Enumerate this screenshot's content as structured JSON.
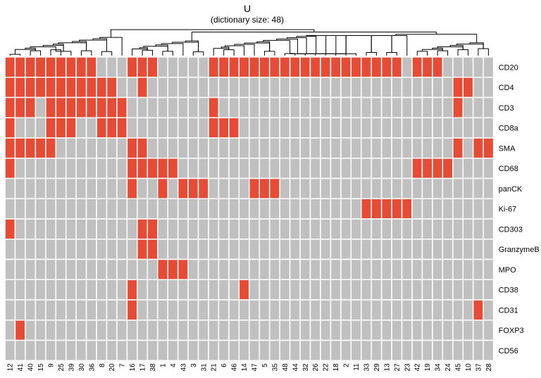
{
  "chart_data": {
    "type": "heatmap",
    "title": "U",
    "subtitle": "(dictionary size: 48)",
    "rows": [
      "CD20",
      "CD4",
      "CD3",
      "CD8a",
      "SMA",
      "CD68",
      "panCK",
      "Ki-67",
      "CD303",
      "GranzymeB",
      "MPO",
      "CD38",
      "CD31",
      "FOXP3",
      "CD56"
    ],
    "columns": [
      "12",
      "41",
      "40",
      "15",
      "9",
      "25",
      "39",
      "30",
      "36",
      "8",
      "20",
      "7",
      "16",
      "17",
      "38",
      "1",
      "4",
      "43",
      "3",
      "31",
      "21",
      "6",
      "46",
      "14",
      "47",
      "5",
      "35",
      "48",
      "44",
      "32",
      "26",
      "22",
      "18",
      "2",
      "11",
      "33",
      "29",
      "13",
      "27",
      "23",
      "42",
      "19",
      "34",
      "24",
      "45",
      "10",
      "37",
      "28"
    ],
    "values": [
      [
        1,
        1,
        1,
        1,
        1,
        1,
        1,
        1,
        1,
        0,
        0,
        0,
        1,
        1,
        1,
        0,
        0,
        0,
        0,
        0,
        1,
        1,
        1,
        1,
        1,
        1,
        1,
        1,
        1,
        1,
        1,
        1,
        1,
        1,
        1,
        1,
        1,
        1,
        1,
        0,
        1,
        1,
        1,
        0,
        0,
        0,
        0,
        0
      ],
      [
        1,
        1,
        1,
        1,
        1,
        1,
        1,
        1,
        1,
        1,
        1,
        0,
        0,
        1,
        0,
        0,
        0,
        0,
        0,
        0,
        0,
        0,
        0,
        0,
        0,
        0,
        0,
        0,
        0,
        0,
        0,
        0,
        0,
        0,
        0,
        0,
        0,
        0,
        0,
        0,
        0,
        0,
        0,
        0,
        1,
        1,
        0,
        0
      ],
      [
        1,
        1,
        1,
        0,
        1,
        1,
        1,
        1,
        1,
        1,
        1,
        1,
        0,
        0,
        0,
        0,
        0,
        0,
        0,
        0,
        1,
        0,
        0,
        0,
        0,
        0,
        0,
        0,
        0,
        0,
        0,
        0,
        0,
        0,
        0,
        0,
        0,
        0,
        0,
        0,
        0,
        0,
        0,
        0,
        1,
        0,
        0,
        0
      ],
      [
        1,
        0,
        0,
        0,
        1,
        1,
        1,
        0,
        0,
        1,
        1,
        1,
        0,
        0,
        0,
        0,
        0,
        0,
        0,
        0,
        1,
        1,
        1,
        0,
        0,
        0,
        0,
        0,
        0,
        0,
        0,
        0,
        0,
        0,
        0,
        0,
        0,
        0,
        0,
        0,
        0,
        0,
        0,
        0,
        0,
        0,
        0,
        0
      ],
      [
        1,
        1,
        1,
        1,
        1,
        0,
        0,
        0,
        0,
        0,
        0,
        0,
        1,
        1,
        0,
        0,
        0,
        0,
        0,
        0,
        0,
        0,
        0,
        0,
        0,
        0,
        0,
        0,
        0,
        0,
        0,
        0,
        0,
        0,
        0,
        0,
        0,
        0,
        0,
        0,
        0,
        0,
        0,
        0,
        1,
        0,
        1,
        1
      ],
      [
        1,
        0,
        0,
        0,
        0,
        0,
        0,
        0,
        0,
        0,
        0,
        0,
        1,
        1,
        1,
        1,
        1,
        0,
        0,
        0,
        0,
        0,
        0,
        0,
        0,
        0,
        0,
        0,
        0,
        0,
        0,
        0,
        0,
        0,
        0,
        0,
        0,
        0,
        0,
        0,
        1,
        1,
        1,
        1,
        0,
        0,
        0,
        0
      ],
      [
        0,
        0,
        0,
        0,
        0,
        0,
        0,
        0,
        0,
        0,
        0,
        0,
        1,
        0,
        0,
        1,
        0,
        1,
        1,
        1,
        0,
        0,
        0,
        0,
        1,
        1,
        1,
        0,
        0,
        0,
        0,
        0,
        0,
        0,
        0,
        0,
        0,
        0,
        0,
        0,
        0,
        0,
        0,
        0,
        0,
        0,
        0,
        0
      ],
      [
        0,
        0,
        0,
        0,
        0,
        0,
        0,
        0,
        0,
        0,
        0,
        0,
        0,
        0,
        0,
        0,
        0,
        0,
        0,
        0,
        0,
        0,
        0,
        0,
        0,
        0,
        0,
        0,
        0,
        0,
        0,
        0,
        0,
        0,
        0,
        1,
        1,
        1,
        1,
        1,
        0,
        0,
        0,
        0,
        0,
        0,
        0,
        0
      ],
      [
        1,
        0,
        0,
        0,
        0,
        0,
        0,
        0,
        0,
        0,
        0,
        0,
        0,
        1,
        1,
        0,
        0,
        0,
        0,
        0,
        0,
        0,
        0,
        0,
        0,
        0,
        0,
        0,
        0,
        0,
        0,
        0,
        0,
        0,
        0,
        0,
        0,
        0,
        0,
        0,
        0,
        0,
        0,
        0,
        0,
        0,
        0,
        0
      ],
      [
        0,
        0,
        0,
        0,
        0,
        0,
        0,
        0,
        0,
        0,
        0,
        0,
        0,
        1,
        1,
        0,
        0,
        0,
        0,
        0,
        0,
        0,
        0,
        0,
        0,
        0,
        0,
        0,
        0,
        0,
        0,
        0,
        0,
        0,
        0,
        0,
        0,
        0,
        0,
        0,
        0,
        0,
        0,
        0,
        0,
        0,
        0,
        0
      ],
      [
        0,
        0,
        0,
        0,
        0,
        0,
        0,
        0,
        0,
        0,
        0,
        0,
        0,
        0,
        0,
        1,
        1,
        1,
        0,
        0,
        0,
        0,
        0,
        0,
        0,
        0,
        0,
        0,
        0,
        0,
        0,
        0,
        0,
        0,
        0,
        0,
        0,
        0,
        0,
        0,
        0,
        0,
        0,
        0,
        0,
        0,
        0,
        0
      ],
      [
        0,
        0,
        0,
        0,
        0,
        0,
        0,
        0,
        0,
        0,
        0,
        0,
        1,
        0,
        0,
        0,
        0,
        0,
        0,
        0,
        0,
        0,
        0,
        1,
        0,
        0,
        0,
        0,
        0,
        0,
        0,
        0,
        0,
        0,
        0,
        0,
        0,
        0,
        0,
        0,
        0,
        0,
        0,
        0,
        0,
        0,
        0,
        0
      ],
      [
        0,
        0,
        0,
        0,
        0,
        0,
        0,
        0,
        0,
        0,
        0,
        0,
        1,
        0,
        0,
        0,
        0,
        0,
        0,
        0,
        0,
        0,
        0,
        0,
        0,
        0,
        0,
        0,
        0,
        0,
        0,
        0,
        0,
        0,
        0,
        0,
        0,
        0,
        0,
        0,
        0,
        0,
        0,
        0,
        0,
        0,
        1,
        0
      ],
      [
        0,
        1,
        0,
        0,
        0,
        0,
        0,
        0,
        0,
        0,
        0,
        0,
        0,
        0,
        0,
        0,
        0,
        0,
        0,
        0,
        0,
        0,
        0,
        0,
        0,
        0,
        0,
        0,
        0,
        0,
        0,
        0,
        0,
        0,
        0,
        0,
        0,
        0,
        0,
        0,
        0,
        0,
        0,
        0,
        0,
        0,
        0,
        0
      ],
      [
        0,
        0,
        0,
        0,
        0,
        0,
        0,
        0,
        0,
        0,
        0,
        0,
        0,
        0,
        0,
        0,
        0,
        0,
        0,
        0,
        0,
        0,
        0,
        0,
        0,
        0,
        0,
        0,
        0,
        0,
        0,
        0,
        0,
        0,
        0,
        0,
        0,
        0,
        0,
        0,
        0,
        0,
        0,
        0,
        0,
        0,
        0,
        0
      ]
    ],
    "colors": {
      "on": "#E64B35",
      "off": "#C0C0C0",
      "grid": "#FFFFFF",
      "dendrogram": "#000000"
    },
    "dendrogram": "column",
    "legend": "none"
  }
}
